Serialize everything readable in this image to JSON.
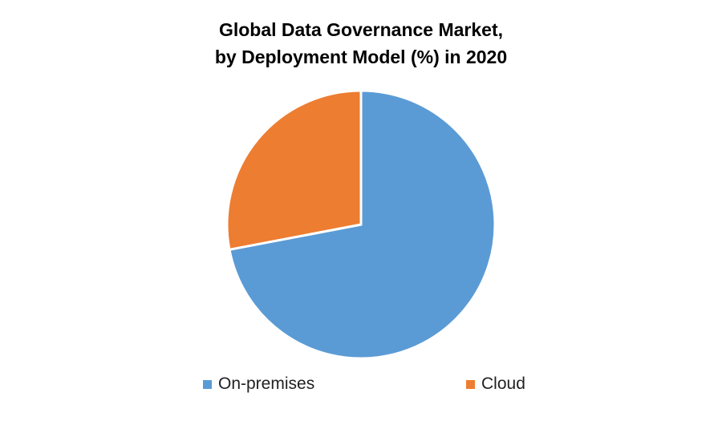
{
  "chart_data": {
    "type": "pie",
    "title_line1": "Global Data Governance Market,",
    "title_line2": "by Deployment Model (%) in 2020",
    "series": [
      {
        "name": "On-premises",
        "value": 72,
        "color": "#5B9BD5"
      },
      {
        "name": "Cloud",
        "value": 28,
        "color": "#ED7D31"
      }
    ],
    "legend_position": "bottom",
    "start_angle_deg": 0,
    "direction": "clockwise"
  }
}
